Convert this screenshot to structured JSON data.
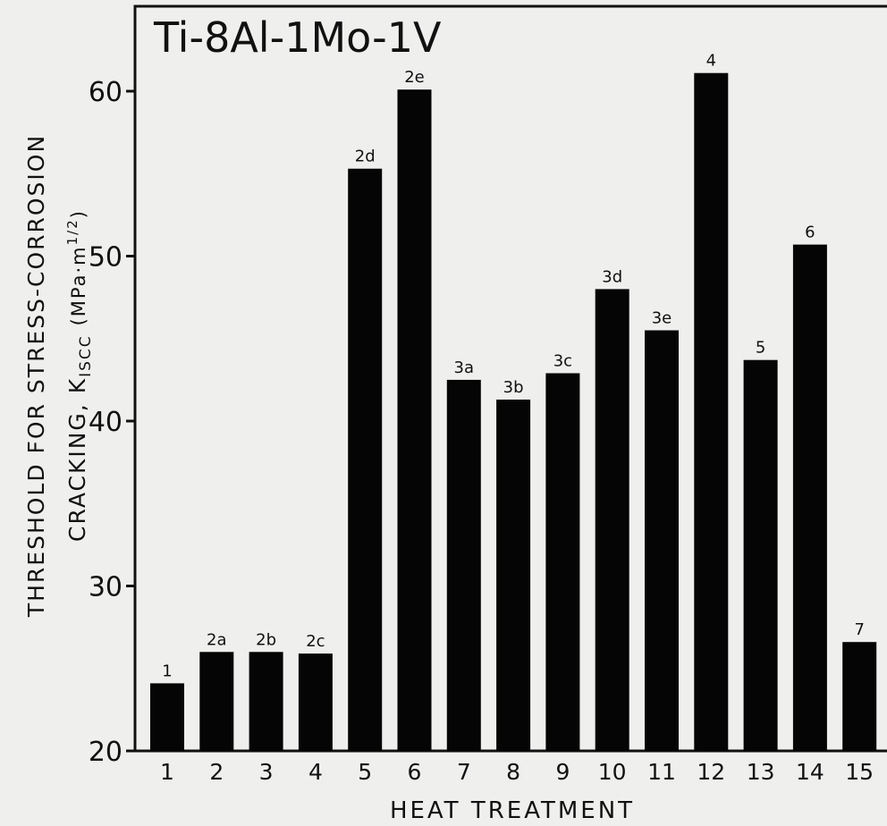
{
  "chart_data": {
    "type": "bar",
    "title": "Ti-8Al-1Mo-1V",
    "xlabel": "HEAT TREATMENT",
    "ylabel_line1": "THRESHOLD FOR STRESS-CORROSION",
    "ylabel_line2": "CRACKING, K",
    "ylabel_subscript": "ISCC",
    "ylabel_units": "(MPa·m",
    "ylabel_units_exp": "1/2",
    "ylabel_units_close": ")",
    "ylim": [
      20,
      65
    ],
    "yticks": [
      20,
      30,
      40,
      50,
      60
    ],
    "categories": [
      "1",
      "2",
      "3",
      "4",
      "5",
      "6",
      "7",
      "8",
      "9",
      "10",
      "11",
      "12",
      "13",
      "14",
      "15"
    ],
    "values": [
      24.1,
      26.0,
      26.0,
      25.9,
      55.3,
      60.1,
      42.5,
      41.3,
      42.9,
      48.0,
      45.5,
      61.1,
      43.7,
      50.7,
      26.6
    ],
    "bar_labels": [
      "1",
      "2a",
      "2b",
      "2c",
      "2d",
      "2e",
      "3a",
      "3b",
      "3c",
      "3d",
      "3e",
      "4",
      "5",
      "6",
      "7"
    ],
    "bar_color": "#050505",
    "grid": false
  }
}
